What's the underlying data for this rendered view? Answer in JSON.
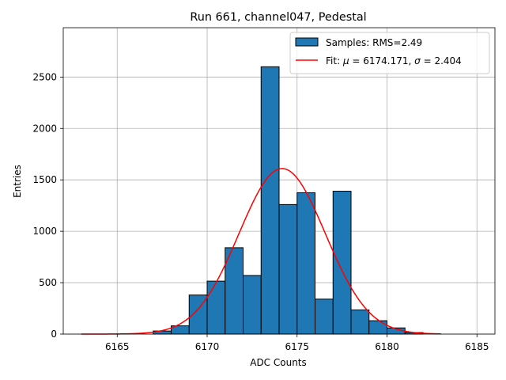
{
  "chart_data": {
    "type": "bar",
    "title": "Run 661, channel047, Pedestal",
    "xlabel": "ADC Counts",
    "ylabel": "Entries",
    "xlim": [
      6162,
      6186
    ],
    "ylim": [
      0,
      2980
    ],
    "xticks": [
      6165,
      6170,
      6175,
      6180,
      6185
    ],
    "yticks": [
      0,
      500,
      1000,
      1500,
      2000,
      2500
    ],
    "grid": true,
    "legend_position": "top-right",
    "bar_color": "#1f77b4",
    "bar_edge_color": "#000000",
    "bins": [
      {
        "left": 6167,
        "right": 6168,
        "count": 30
      },
      {
        "left": 6168,
        "right": 6169,
        "count": 80
      },
      {
        "left": 6169,
        "right": 6170,
        "count": 380
      },
      {
        "left": 6170,
        "right": 6171,
        "count": 515
      },
      {
        "left": 6171,
        "right": 6172,
        "count": 840
      },
      {
        "left": 6172,
        "right": 6173,
        "count": 570
      },
      {
        "left": 6173,
        "right": 6174,
        "count": 2600
      },
      {
        "left": 6174,
        "right": 6175,
        "count": 1260
      },
      {
        "left": 6175,
        "right": 6176,
        "count": 1375
      },
      {
        "left": 6176,
        "right": 6177,
        "count": 340
      },
      {
        "left": 6177,
        "right": 6178,
        "count": 1390
      },
      {
        "left": 6178,
        "right": 6179,
        "count": 235
      },
      {
        "left": 6179,
        "right": 6180,
        "count": 130
      },
      {
        "left": 6180,
        "right": 6181,
        "count": 60
      },
      {
        "left": 6181,
        "right": 6182,
        "count": 15
      }
    ],
    "fit": {
      "mu": 6174.171,
      "sigma": 2.404,
      "amplitude": 1610,
      "x_range": [
        6163,
        6183
      ],
      "color": "#ff0000"
    },
    "legend": {
      "samples_label": "Samples: RMS=2.49",
      "fit_label_prefix": "Fit: ",
      "fit_mu_symbol": "μ",
      "fit_mu_text": " = 6174.171, ",
      "fit_sigma_symbol": "σ",
      "fit_sigma_text": " = 2.404"
    }
  }
}
